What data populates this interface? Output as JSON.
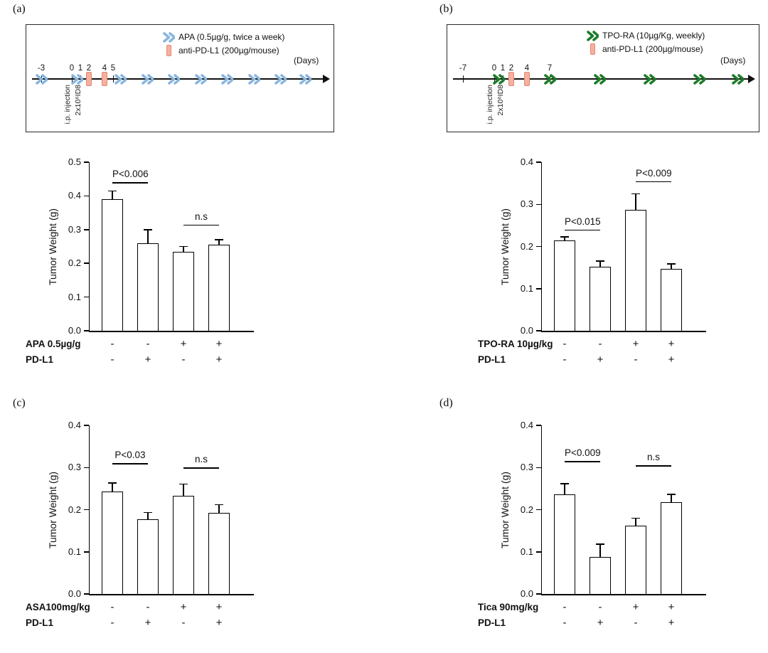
{
  "panels": {
    "a": {
      "label": "(a)"
    },
    "b": {
      "label": "(b)"
    },
    "c": {
      "label": "(c)"
    },
    "d": {
      "label": "(d)"
    }
  },
  "timelines": {
    "a": {
      "legend": [
        {
          "icon": "apa-dose-chevron-icon",
          "label": "APA (0.5µg/g, twice a week)"
        },
        {
          "icon": "anti-pd-l1-dose-icon",
          "label": "anti-PD-L1 (200µg/mouse)"
        }
      ],
      "days_label": "(Days)",
      "tick_labels": [
        "-3",
        "0",
        "1",
        "2",
        "4",
        "5"
      ],
      "day0_labels": [
        "i.p. injection",
        "2x10⁶ID8"
      ],
      "chevron_color": "#8ab6de",
      "dose_color": "#f6b0a0",
      "dose_border": "#e08a72"
    },
    "b": {
      "legend": [
        {
          "icon": "tpo-ra-dose-chevron-icon",
          "label": "TPO-RA (10µg/Kg,  weekly)"
        },
        {
          "icon": "anti-pd-l1-dose-icon",
          "label": "anti-PD-L1 (200µg/mouse)"
        }
      ],
      "days_label": "(Days)",
      "tick_labels": [
        "-7",
        "0",
        "1",
        "2",
        "4",
        "7"
      ],
      "day0_labels": [
        "i.p. injection",
        "2x10⁶ID8"
      ],
      "chevron_color": "#1e7b2a",
      "dose_color": "#f6b0a0",
      "dose_border": "#e08a72"
    }
  },
  "chart_data": [
    {
      "id": "a",
      "type": "bar",
      "title": "",
      "ylabel": "Tumor Weight (g)",
      "ylim": [
        0,
        0.5
      ],
      "yticks": [
        0,
        0.1,
        0.2,
        0.3,
        0.4,
        0.5
      ],
      "categories": [
        "APA- / PD-L1-",
        "APA- / PD-L1+",
        "APA+ / PD-L1-",
        "APA+ / PD-L1+"
      ],
      "values": [
        0.39,
        0.26,
        0.235,
        0.255
      ],
      "errors": [
        0.025,
        0.04,
        0.015,
        0.015
      ],
      "annotations": [
        {
          "label": "P<0.006",
          "between": [
            0,
            1
          ],
          "y": 0.44
        },
        {
          "label": "n.s",
          "between": [
            2,
            3
          ],
          "y": 0.315
        }
      ],
      "x_rows": [
        {
          "label": "APA 0.5µg/g",
          "signs": [
            "-",
            "-",
            "+",
            "+"
          ]
        },
        {
          "label": "PD-L1",
          "signs": [
            "-",
            "+",
            "-",
            "+"
          ]
        }
      ],
      "bar_fill": "#ffffff",
      "bar_border": "#000000",
      "grid": false,
      "legend_position": "none"
    },
    {
      "id": "b",
      "type": "bar",
      "title": "",
      "ylabel": "Tumor Weight (g)",
      "ylim": [
        0,
        0.4
      ],
      "yticks": [
        0,
        0.1,
        0.2,
        0.3,
        0.4
      ],
      "categories": [
        "TPO-RA- / PD-L1-",
        "TPO-RA- / PD-L1+",
        "TPO-RA+ / PD-L1-",
        "TPO-RA+ / PD-L1+"
      ],
      "values": [
        0.215,
        0.152,
        0.287,
        0.147
      ],
      "errors": [
        0.008,
        0.013,
        0.038,
        0.012
      ],
      "annotations": [
        {
          "label": "P<0.015",
          "between": [
            0,
            1
          ],
          "y": 0.24
        },
        {
          "label": "P<0.009",
          "between": [
            2,
            3
          ],
          "y": 0.355
        }
      ],
      "x_rows": [
        {
          "label": "TPO-RA 10µg/kg",
          "signs": [
            "-",
            "-",
            "+",
            "+"
          ]
        },
        {
          "label": "PD-L1",
          "signs": [
            "-",
            "+",
            "-",
            "+"
          ]
        }
      ],
      "bar_fill": "#ffffff",
      "bar_border": "#000000",
      "grid": false,
      "legend_position": "none"
    },
    {
      "id": "c",
      "type": "bar",
      "title": "",
      "ylabel": "Tumor Weight (g)",
      "ylim": [
        0,
        0.4
      ],
      "yticks": [
        0,
        0.1,
        0.2,
        0.3,
        0.4
      ],
      "categories": [
        "ASA- / PD-L1-",
        "ASA- / PD-L1+",
        "ASA+ / PD-L1-",
        "ASA+ / PD-L1+"
      ],
      "values": [
        0.243,
        0.178,
        0.233,
        0.192
      ],
      "errors": [
        0.02,
        0.015,
        0.028,
        0.02
      ],
      "annotations": [
        {
          "label": "P<0.03",
          "between": [
            0,
            1
          ],
          "y": 0.31
        },
        {
          "label": "n.s",
          "between": [
            2,
            3
          ],
          "y": 0.3
        }
      ],
      "x_rows": [
        {
          "label": "ASA100mg/kg",
          "signs": [
            "-",
            "-",
            "+",
            "+"
          ]
        },
        {
          "label": "PD-L1",
          "signs": [
            "-",
            "+",
            "-",
            "+"
          ]
        }
      ],
      "bar_fill": "#ffffff",
      "bar_border": "#000000",
      "grid": false,
      "legend_position": "none"
    },
    {
      "id": "d",
      "type": "bar",
      "title": "",
      "ylabel": "Tumor Weight (g)",
      "ylim": [
        0,
        0.4
      ],
      "yticks": [
        0,
        0.1,
        0.2,
        0.3,
        0.4
      ],
      "categories": [
        "Tica- / PD-L1-",
        "Tica- / PD-L1+",
        "Tica+ / PD-L1-",
        "Tica+ / PD-L1+"
      ],
      "values": [
        0.237,
        0.088,
        0.162,
        0.218
      ],
      "errors": [
        0.025,
        0.03,
        0.018,
        0.018
      ],
      "annotations": [
        {
          "label": "P<0.009",
          "between": [
            0,
            1
          ],
          "y": 0.315
        },
        {
          "label": "n.s",
          "between": [
            2,
            3
          ],
          "y": 0.305
        }
      ],
      "x_rows": [
        {
          "label": "Tica 90mg/kg",
          "signs": [
            "-",
            "-",
            "+",
            "+"
          ]
        },
        {
          "label": "PD-L1",
          "signs": [
            "-",
            "+",
            "-",
            "+"
          ]
        }
      ],
      "bar_fill": "#ffffff",
      "bar_border": "#000000",
      "grid": false,
      "legend_position": "none"
    }
  ]
}
